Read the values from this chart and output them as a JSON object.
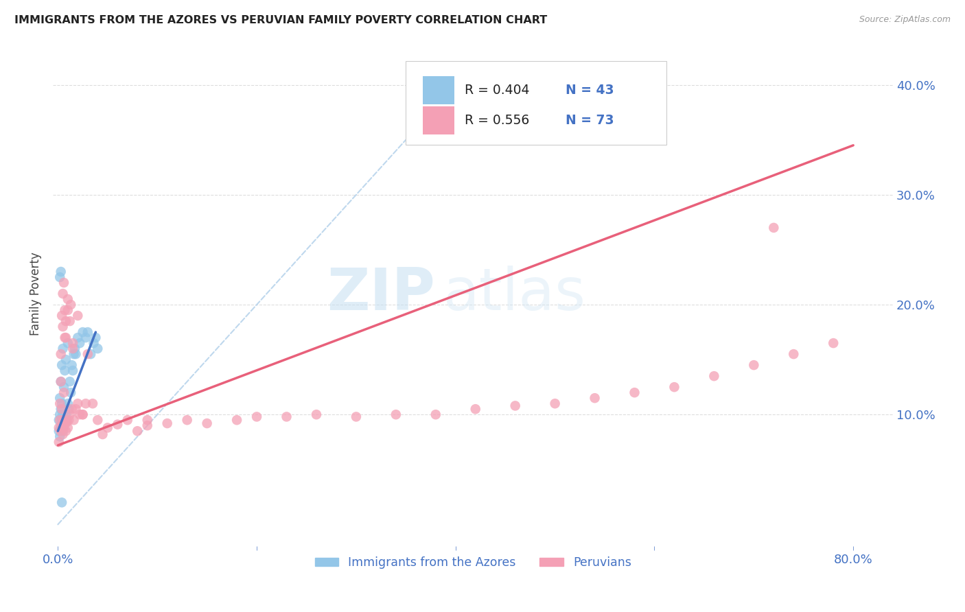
{
  "title": "IMMIGRANTS FROM THE AZORES VS PERUVIAN FAMILY POVERTY CORRELATION CHART",
  "source": "Source: ZipAtlas.com",
  "tick_color": "#4472c4",
  "ylabel": "Family Poverty",
  "x_tick_labels": [
    "0.0%",
    "",
    "",
    "",
    "80.0%"
  ],
  "x_tick_positions": [
    0.0,
    0.2,
    0.4,
    0.6,
    0.8
  ],
  "y_tick_labels": [
    "10.0%",
    "20.0%",
    "30.0%",
    "40.0%"
  ],
  "y_tick_positions": [
    0.1,
    0.2,
    0.3,
    0.4
  ],
  "xlim": [
    -0.005,
    0.84
  ],
  "ylim": [
    -0.02,
    0.44
  ],
  "legend_label1": "Immigrants from the Azores",
  "legend_label2": "Peruvians",
  "R1": 0.404,
  "N1": 43,
  "R2": 0.556,
  "N2": 73,
  "color_blue": "#93c6e8",
  "color_pink": "#f4a0b5",
  "color_blue_line": "#4472c4",
  "color_pink_line": "#e8607a",
  "color_dashed": "#b8d4ec",
  "watermark_zip": "ZIP",
  "watermark_atlas": "atlas",
  "background_color": "#ffffff",
  "grid_color": "#dddddd",
  "blue_line_x": [
    0.0,
    0.038
  ],
  "blue_line_y": [
    0.085,
    0.175
  ],
  "pink_line_x": [
    0.0,
    0.8
  ],
  "pink_line_y": [
    0.072,
    0.345
  ],
  "dashed_line_x": [
    0.0,
    0.415
  ],
  "dashed_line_y": [
    0.0,
    0.415
  ]
}
